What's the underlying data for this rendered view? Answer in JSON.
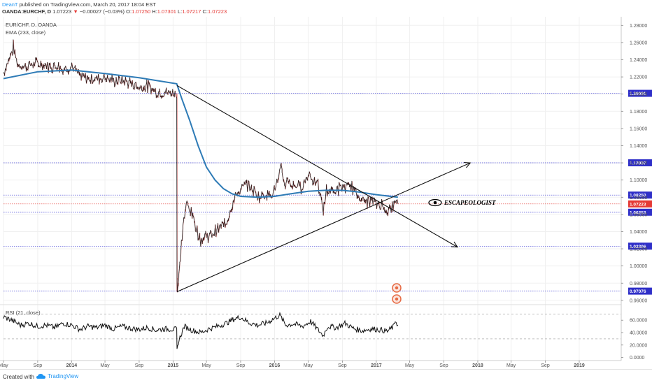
{
  "header": {
    "author": "DeanT",
    "published": " published on TradingView.com, March 20, 2017 18:04 EST",
    "symbol": "OANDA:EURCHF, D",
    "last": "1.07223",
    "change_arrow": "▼",
    "change": "−0.00027 (−0.03%)",
    "o_label": "O:",
    "o_val": "1.07250",
    "h_label": "H:",
    "h_val": "1.07301",
    "l_label": "L:",
    "l_val": "1.07217",
    "c_label": "C:",
    "c_val": "1.07223"
  },
  "legend": {
    "symbol": "EUR/CHF, D, OANDA",
    "ema": "EMA (233, close)",
    "rsi": "RSI (21, close)"
  },
  "annotation": "ESCAPEOLOGIST",
  "footer": {
    "created": "Created with",
    "brand": "TradingView"
  },
  "colors": {
    "price": "#1a1a1a",
    "ema": "#2e7bb6",
    "hline": "#3f3fd4",
    "tag": "#2f2fc8",
    "last_tag": "#e53935",
    "rsi": "#111111",
    "divider": "#e53935"
  },
  "chart_data": {
    "type": "line",
    "main": {
      "ylim": [
        0.955,
        1.29
      ],
      "y_ticks": [
        0.96,
        0.98,
        1.0,
        1.02,
        1.04,
        1.06,
        1.08,
        1.1,
        1.12,
        1.14,
        1.16,
        1.18,
        1.2,
        1.22,
        1.24,
        1.26,
        1.28
      ],
      "y_tick_labels": [
        "0.96000",
        "0.98000",
        "1.00000",
        "1.02000",
        "1.04000",
        "1.06000",
        "1.08000",
        "1.10000",
        "1.12000",
        "1.14000",
        "1.16000",
        "1.18000",
        "1.20000",
        "1.22000",
        "1.24000",
        "1.26000",
        "1.28000"
      ],
      "horizontal_levels": [
        {
          "value": 1.20091,
          "label": "1.20091"
        },
        {
          "value": 1.12007,
          "label": "1.12007"
        },
        {
          "value": 1.0825,
          "label": "1.08250"
        },
        {
          "value": 1.06253,
          "label": "1.06253"
        },
        {
          "value": 1.02306,
          "label": "1.02306"
        },
        {
          "value": 0.97076,
          "label": "0.97076"
        }
      ],
      "last_price": {
        "value": 1.07223,
        "label": "1.07223"
      },
      "price_series": [
        [
          "2013-05-01",
          1.225
        ],
        [
          "2013-05-20",
          1.24
        ],
        [
          "2013-06-05",
          1.255
        ],
        [
          "2013-06-20",
          1.235
        ],
        [
          "2013-07-15",
          1.232
        ],
        [
          "2013-08-15",
          1.235
        ],
        [
          "2013-09-15",
          1.235
        ],
        [
          "2013-10-15",
          1.232
        ],
        [
          "2013-11-15",
          1.234
        ],
        [
          "2013-12-01",
          1.228
        ],
        [
          "2014-01-01",
          1.233
        ],
        [
          "2014-02-01",
          1.22
        ],
        [
          "2014-03-01",
          1.218
        ],
        [
          "2014-04-01",
          1.218
        ],
        [
          "2014-05-01",
          1.22
        ],
        [
          "2014-06-01",
          1.215
        ],
        [
          "2014-07-01",
          1.216
        ],
        [
          "2014-08-01",
          1.213
        ],
        [
          "2014-09-01",
          1.208
        ],
        [
          "2014-10-01",
          1.209
        ],
        [
          "2014-11-01",
          1.203
        ],
        [
          "2014-12-01",
          1.202
        ],
        [
          "2015-01-14",
          1.2009
        ],
        [
          "2015-01-15",
          0.985
        ],
        [
          "2015-01-16",
          0.97
        ],
        [
          "2015-01-25",
          1.0
        ],
        [
          "2015-02-05",
          1.045
        ],
        [
          "2015-02-20",
          1.075
        ],
        [
          "2015-03-10",
          1.06
        ],
        [
          "2015-03-25",
          1.045
        ],
        [
          "2015-04-10",
          1.03
        ],
        [
          "2015-04-25",
          1.035
        ],
        [
          "2015-05-15",
          1.035
        ],
        [
          "2015-06-01",
          1.04
        ],
        [
          "2015-06-20",
          1.045
        ],
        [
          "2015-07-10",
          1.05
        ],
        [
          "2015-07-25",
          1.065
        ],
        [
          "2015-08-05",
          1.075
        ],
        [
          "2015-08-20",
          1.085
        ],
        [
          "2015-09-05",
          1.09
        ],
        [
          "2015-09-25",
          1.095
        ],
        [
          "2015-10-10",
          1.09
        ],
        [
          "2015-10-25",
          1.085
        ],
        [
          "2015-11-10",
          1.08
        ],
        [
          "2015-11-25",
          1.085
        ],
        [
          "2015-12-10",
          1.083
        ],
        [
          "2015-12-25",
          1.085
        ],
        [
          "2016-01-15",
          1.1
        ],
        [
          "2016-01-25",
          1.115
        ],
        [
          "2016-02-05",
          1.095
        ],
        [
          "2016-02-20",
          1.1
        ],
        [
          "2016-03-05",
          1.092
        ],
        [
          "2016-03-20",
          1.095
        ],
        [
          "2016-04-05",
          1.09
        ],
        [
          "2016-04-20",
          1.1
        ],
        [
          "2016-05-05",
          1.108
        ],
        [
          "2016-05-20",
          1.1
        ],
        [
          "2016-06-05",
          1.093
        ],
        [
          "2016-06-24",
          1.065
        ],
        [
          "2016-07-05",
          1.087
        ],
        [
          "2016-07-20",
          1.088
        ],
        [
          "2016-08-05",
          1.087
        ],
        [
          "2016-08-20",
          1.09
        ],
        [
          "2016-09-05",
          1.093
        ],
        [
          "2016-09-20",
          1.09
        ],
        [
          "2016-10-05",
          1.093
        ],
        [
          "2016-10-20",
          1.085
        ],
        [
          "2016-11-05",
          1.08
        ],
        [
          "2016-11-20",
          1.073
        ],
        [
          "2016-12-05",
          1.077
        ],
        [
          "2016-12-20",
          1.074
        ],
        [
          "2017-01-05",
          1.072
        ],
        [
          "2017-01-20",
          1.071
        ],
        [
          "2017-02-05",
          1.065
        ],
        [
          "2017-02-20",
          1.066
        ],
        [
          "2017-03-05",
          1.068
        ],
        [
          "2017-03-10",
          1.078
        ],
        [
          "2017-03-20",
          1.07223
        ]
      ],
      "ema_series": [
        [
          "2013-05-01",
          1.218
        ],
        [
          "2013-09-01",
          1.226
        ],
        [
          "2014-01-01",
          1.228
        ],
        [
          "2014-05-01",
          1.224
        ],
        [
          "2014-09-01",
          1.219
        ],
        [
          "2015-01-14",
          1.212
        ],
        [
          "2015-02-01",
          1.195
        ],
        [
          "2015-03-01",
          1.17
        ],
        [
          "2015-04-01",
          1.14
        ],
        [
          "2015-05-01",
          1.115
        ],
        [
          "2015-06-01",
          1.1
        ],
        [
          "2015-07-01",
          1.09
        ],
        [
          "2015-08-01",
          1.084
        ],
        [
          "2015-09-01",
          1.081
        ],
        [
          "2015-11-01",
          1.08
        ],
        [
          "2016-01-01",
          1.081
        ],
        [
          "2016-03-01",
          1.084
        ],
        [
          "2016-05-01",
          1.087
        ],
        [
          "2016-07-01",
          1.088
        ],
        [
          "2016-09-01",
          1.088
        ],
        [
          "2016-11-01",
          1.086
        ],
        [
          "2017-01-01",
          1.083
        ],
        [
          "2017-03-20",
          1.08
        ]
      ],
      "trendlines": [
        {
          "name": "descending",
          "from": [
            "2015-01-15",
            1.21
          ],
          "to": [
            "2017-10-20",
            1.022
          ]
        },
        {
          "name": "ascending",
          "from": [
            "2015-01-15",
            0.97
          ],
          "to": [
            "2017-12-05",
            1.12
          ]
        }
      ],
      "vertical_marker": "2015-01-15"
    },
    "rsi": {
      "ylim": [
        -5,
        85
      ],
      "y_ticks": [
        0,
        20,
        40,
        60
      ],
      "y_tick_labels": [
        "0.0000",
        "20.0000",
        "40.0000",
        "60.0000"
      ],
      "bands": [
        70,
        30
      ],
      "series": [
        [
          "2013-05-01",
          65
        ],
        [
          "2013-06-01",
          60
        ],
        [
          "2013-07-01",
          52
        ],
        [
          "2013-08-01",
          55
        ],
        [
          "2013-09-01",
          50
        ],
        [
          "2013-10-01",
          52
        ],
        [
          "2013-11-01",
          48
        ],
        [
          "2013-12-01",
          55
        ],
        [
          "2014-01-01",
          52
        ],
        [
          "2014-02-01",
          45
        ],
        [
          "2014-03-01",
          50
        ],
        [
          "2014-04-01",
          48
        ],
        [
          "2014-05-01",
          52
        ],
        [
          "2014-06-01",
          46
        ],
        [
          "2014-07-01",
          50
        ],
        [
          "2014-08-01",
          47
        ],
        [
          "2014-09-01",
          45
        ],
        [
          "2014-10-01",
          48
        ],
        [
          "2014-11-01",
          44
        ],
        [
          "2014-12-01",
          46
        ],
        [
          "2015-01-14",
          45
        ],
        [
          "2015-01-15",
          10
        ],
        [
          "2015-01-20",
          25
        ],
        [
          "2015-02-10",
          50
        ],
        [
          "2015-03-10",
          44
        ],
        [
          "2015-04-10",
          40
        ],
        [
          "2015-05-10",
          46
        ],
        [
          "2015-06-10",
          50
        ],
        [
          "2015-07-10",
          55
        ],
        [
          "2015-08-10",
          62
        ],
        [
          "2015-09-01",
          65
        ],
        [
          "2015-10-01",
          56
        ],
        [
          "2015-11-01",
          52
        ],
        [
          "2015-12-01",
          55
        ],
        [
          "2016-01-20",
          68
        ],
        [
          "2016-02-10",
          52
        ],
        [
          "2016-03-10",
          54
        ],
        [
          "2016-04-10",
          50
        ],
        [
          "2016-05-10",
          58
        ],
        [
          "2016-06-24",
          35
        ],
        [
          "2016-07-10",
          50
        ],
        [
          "2016-08-10",
          48
        ],
        [
          "2016-09-10",
          55
        ],
        [
          "2016-10-10",
          47
        ],
        [
          "2016-11-10",
          43
        ],
        [
          "2016-12-10",
          46
        ],
        [
          "2017-01-10",
          45
        ],
        [
          "2017-02-10",
          42
        ],
        [
          "2017-03-05",
          50
        ],
        [
          "2017-03-10",
          60
        ],
        [
          "2017-03-20",
          52
        ]
      ]
    },
    "x_axis": {
      "range": [
        "2013-05-01",
        "2019-06-01"
      ],
      "ticks": [
        {
          "date": "2013-05-01",
          "label": "May"
        },
        {
          "date": "2013-09-01",
          "label": "Sep"
        },
        {
          "date": "2014-01-01",
          "label": "2014"
        },
        {
          "date": "2014-05-01",
          "label": "May"
        },
        {
          "date": "2014-09-01",
          "label": "Sep"
        },
        {
          "date": "2015-01-01",
          "label": "2015"
        },
        {
          "date": "2015-05-01",
          "label": "May"
        },
        {
          "date": "2015-09-01",
          "label": "Sep"
        },
        {
          "date": "2016-01-01",
          "label": "2016"
        },
        {
          "date": "2016-05-01",
          "label": "May"
        },
        {
          "date": "2016-09-01",
          "label": "Sep"
        },
        {
          "date": "2017-01-01",
          "label": "2017"
        },
        {
          "date": "2017-05-01",
          "label": "May"
        },
        {
          "date": "2017-09-01",
          "label": "Sep"
        },
        {
          "date": "2018-01-01",
          "label": "2018"
        },
        {
          "date": "2018-05-01",
          "label": "May"
        },
        {
          "date": "2018-09-01",
          "label": "Sep"
        },
        {
          "date": "2019-01-01",
          "label": "2019"
        }
      ]
    }
  }
}
